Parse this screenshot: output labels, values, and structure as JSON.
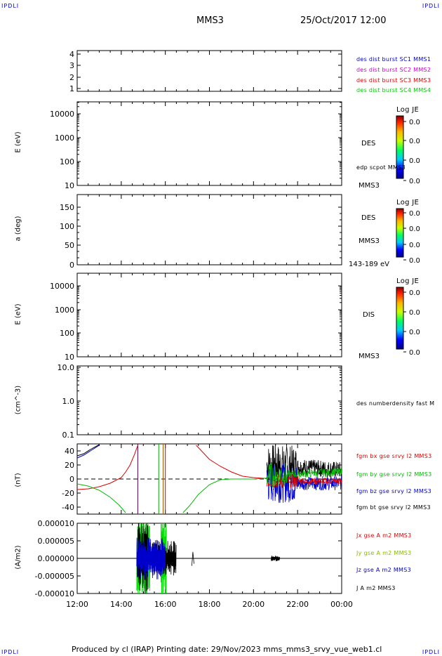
{
  "corners": {
    "tl": "IPDLI",
    "tr": "IPDLI",
    "bl": "IPDLI",
    "br": "IPDLI"
  },
  "header": {
    "spacecraft": "MMS3",
    "datetime": "25/Oct/2017 12:00"
  },
  "footer": {
    "text": "Produced by cl (IRAP)   Printing date: 29/Nov/2023   mms_mms3_srvy_vue_web1.cl"
  },
  "panels": {
    "p1": {
      "ticks": [
        "4",
        "3",
        "2",
        "1"
      ],
      "legend": [
        {
          "text": "des dist burst SC1 MMS1",
          "color": "#0000cc"
        },
        {
          "text": "des dist burst SC2 MMS2",
          "color": "#cc00cc"
        },
        {
          "text": "des dist burst SC3 MMS3",
          "color": "#dd0000"
        },
        {
          "text": "des dist burst SC4 MMS4",
          "color": "#00cc00"
        }
      ]
    },
    "p2": {
      "ylabel": "E (eV)",
      "ticks": [
        "10000",
        "1000",
        "100",
        "10"
      ],
      "colorbar_title": "Log JE",
      "colorbar_ticks": [
        "0.0",
        "0.0",
        "0.0",
        "0.0"
      ],
      "species": "DES",
      "extra": "edp scpot MMS3",
      "sc": "MMS3"
    },
    "p3": {
      "ylabel": "a (deg)",
      "ticks": [
        "150",
        "100",
        "50",
        "0"
      ],
      "colorbar_title": "Log JE",
      "colorbar_ticks": [
        "0.0",
        "0.0",
        "0.0",
        "0.0"
      ],
      "species": "DES",
      "sc": "MMS3",
      "range": "143-189 eV"
    },
    "p4": {
      "ylabel": "E (eV)",
      "ticks": [
        "10000",
        "1000",
        "100",
        "10"
      ],
      "colorbar_title": "Log JE",
      "colorbar_ticks": [
        "0.0",
        "0.0",
        "0.0",
        "0.0"
      ],
      "species": "DIS",
      "sc": "MMS3"
    },
    "p5": {
      "ylabel": "(cm^-3)",
      "ticks": [
        "10.0",
        "1.0",
        "0.1"
      ],
      "legend": [
        {
          "text": "des numberdensity fast M",
          "color": "#000000"
        }
      ]
    },
    "p6": {
      "ylabel": "(nT)",
      "legend": [
        {
          "text": "fgm bx gse srvy l2 MMS3",
          "color": "#dd0000"
        },
        {
          "text": "fgm by gse srvy l2 MMS3",
          "color": "#00bb00"
        },
        {
          "text": "fgm bz gse srvy l2 MMS3",
          "color": "#0000cc"
        },
        {
          "text": "fgm bt gse srvy l2 MMS3",
          "color": "#000000"
        }
      ]
    },
    "p7": {
      "ylabel": "(A/m2)",
      "legend": [
        {
          "text": "Jx gse A m2 MMS3",
          "color": "#dd0000"
        },
        {
          "text": "Jy gse A m2 MMS3",
          "color": "#88bb00"
        },
        {
          "text": "Jz gse A m2 MMS3",
          "color": "#0000cc"
        },
        {
          "text": "J A m2 MMS3",
          "color": "#000000"
        }
      ]
    }
  },
  "chart_data": [
    {
      "type": "line",
      "title": "",
      "ylabel": "(nT)",
      "x_time_labels": [
        "12:00",
        "14:00",
        "16:00",
        "18:00",
        "20:00",
        "22:00",
        "00:00"
      ],
      "ylim": [
        -50,
        50
      ],
      "yticks": [
        40,
        20,
        0,
        -20,
        -40
      ],
      "series": [
        {
          "name": "fgm bx gse srvy l2 MMS3",
          "color": "#dd0000",
          "points": [
            [
              12.0,
              -15
            ],
            [
              12.5,
              -14
            ],
            [
              13.0,
              -11
            ],
            [
              13.5,
              -6
            ],
            [
              14.0,
              2
            ],
            [
              14.2,
              10
            ],
            [
              14.4,
              20
            ],
            [
              14.6,
              35
            ],
            [
              14.75,
              48
            ],
            [
              17.4,
              48
            ],
            [
              17.7,
              38
            ],
            [
              18.0,
              28
            ],
            [
              18.5,
              18
            ],
            [
              19.0,
              10
            ],
            [
              19.5,
              4
            ],
            [
              20.0,
              2
            ],
            [
              20.5,
              1
            ],
            [
              21.0,
              -3
            ],
            [
              22.0,
              -5
            ],
            [
              23.0,
              -4
            ],
            [
              24.0,
              -6
            ]
          ]
        },
        {
          "name": "fgm by gse srvy l2 MMS3",
          "color": "#00bb00",
          "points": [
            [
              12.0,
              -7
            ],
            [
              12.5,
              -10
            ],
            [
              13.0,
              -16
            ],
            [
              13.5,
              -26
            ],
            [
              13.9,
              -37
            ],
            [
              14.2,
              -48
            ],
            [
              16.8,
              -48
            ],
            [
              17.1,
              -38
            ],
            [
              17.5,
              -22
            ],
            [
              18.0,
              -8
            ],
            [
              18.5,
              -1
            ],
            [
              19.0,
              0
            ],
            [
              20.0,
              0
            ],
            [
              20.5,
              1
            ],
            [
              21.0,
              3
            ],
            [
              22.0,
              7
            ],
            [
              23.0,
              10
            ],
            [
              24.0,
              10
            ]
          ]
        },
        {
          "name": "fgm bz gse srvy l2 MMS3",
          "color": "#0000cc",
          "points": [
            [
              12.0,
              30
            ],
            [
              12.3,
              34
            ],
            [
              12.6,
              40
            ],
            [
              13.0,
              48
            ],
            [
              20.5,
              0
            ],
            [
              21.0,
              -6
            ],
            [
              22.0,
              -9
            ],
            [
              23.0,
              -4
            ],
            [
              24.0,
              -3
            ]
          ]
        },
        {
          "name": "fgm bt gse srvy l2 MMS3",
          "color": "#000000",
          "points": [
            [
              12.0,
              33
            ],
            [
              12.3,
              36
            ],
            [
              12.6,
              42
            ],
            [
              13.0,
              49
            ],
            [
              20.6,
              8
            ],
            [
              21.0,
              25
            ],
            [
              22.0,
              20
            ],
            [
              23.0,
              15
            ],
            [
              24.0,
              14
            ]
          ]
        }
      ]
    },
    {
      "type": "line",
      "title": "",
      "ylabel": "(A/m2)",
      "x_time_labels": [
        "12:00",
        "14:00",
        "16:00",
        "18:00",
        "20:00",
        "22:00",
        "00:00"
      ],
      "ylim": [
        -1e-05,
        1e-05
      ],
      "yticks": [
        "0.000010",
        "0.000005",
        "0.000000",
        "-0.000005",
        "-0.000010"
      ],
      "series": [
        {
          "name": "Jx gse A m2 MMS3",
          "color": "#dd0000",
          "points": [
            [
              12,
              0
            ],
            [
              24,
              0
            ]
          ]
        },
        {
          "name": "Jy gse A m2 MMS3",
          "color": "#88bb00",
          "points": [
            [
              12,
              0
            ],
            [
              14.6,
              0
            ],
            [
              14.8,
              9e-06
            ],
            [
              15.5,
              -8e-06
            ],
            [
              16.0,
              1e-05
            ],
            [
              16.4,
              0
            ],
            [
              24,
              0
            ]
          ]
        },
        {
          "name": "Jz gse A m2 MMS3",
          "color": "#0000cc",
          "points": [
            [
              12,
              0
            ],
            [
              14.7,
              -6e-06
            ],
            [
              15.6,
              3e-06
            ],
            [
              16.0,
              -5e-06
            ],
            [
              24,
              0
            ]
          ]
        },
        {
          "name": "J A m2 MMS3",
          "color": "#000000",
          "points": [
            [
              12,
              0
            ],
            [
              14.8,
              1e-05
            ],
            [
              15.3,
              4e-06
            ],
            [
              15.9,
              1e-05
            ],
            [
              16.5,
              0
            ],
            [
              24,
              0
            ]
          ]
        }
      ]
    }
  ]
}
